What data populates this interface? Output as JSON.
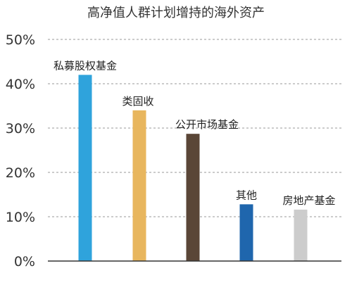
{
  "chart_data": {
    "type": "bar",
    "title": "高净值人群计划增持的海外资产",
    "categories": [
      "私募股权基金",
      "类固收",
      "公开市场基金",
      "其他",
      "房地产基金"
    ],
    "values": [
      42,
      34,
      28.7,
      12.8,
      11.6
    ],
    "value_unit": "%",
    "ylim": [
      0,
      50
    ],
    "y_ticks": [
      "0%",
      "10%",
      "20%",
      "30%",
      "40%",
      "50%"
    ],
    "y_tick_values": [
      0,
      10,
      20,
      30,
      40,
      50
    ],
    "grid": "horizontal dashed",
    "legend": "none",
    "colors": [
      "#2fa3dc",
      "#e8b65e",
      "#5a4637",
      "#1f66ad",
      "#cccccc"
    ]
  }
}
